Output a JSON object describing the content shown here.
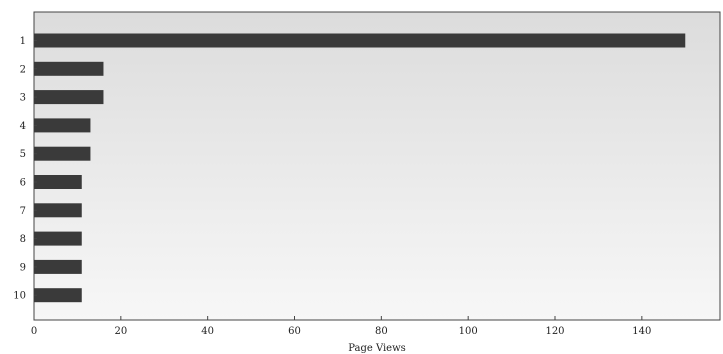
{
  "chart_data": {
    "type": "bar",
    "orientation": "horizontal",
    "categories": [
      "1",
      "2",
      "3",
      "4",
      "5",
      "6",
      "7",
      "8",
      "9",
      "10"
    ],
    "values": [
      150,
      16,
      16,
      13,
      13,
      11,
      11,
      11,
      11,
      11
    ],
    "xlabel": "Page Views",
    "ylabel": "",
    "xlim": [
      0,
      158
    ],
    "xticks": [
      0,
      20,
      40,
      60,
      80,
      100,
      120,
      140
    ],
    "grid": false,
    "legend": "none",
    "colors": {
      "bar": "#3a3a3a",
      "plot_background_top": "#dcdcdc",
      "plot_background_bottom": "#f7f7f7",
      "frame": "#444444"
    }
  }
}
